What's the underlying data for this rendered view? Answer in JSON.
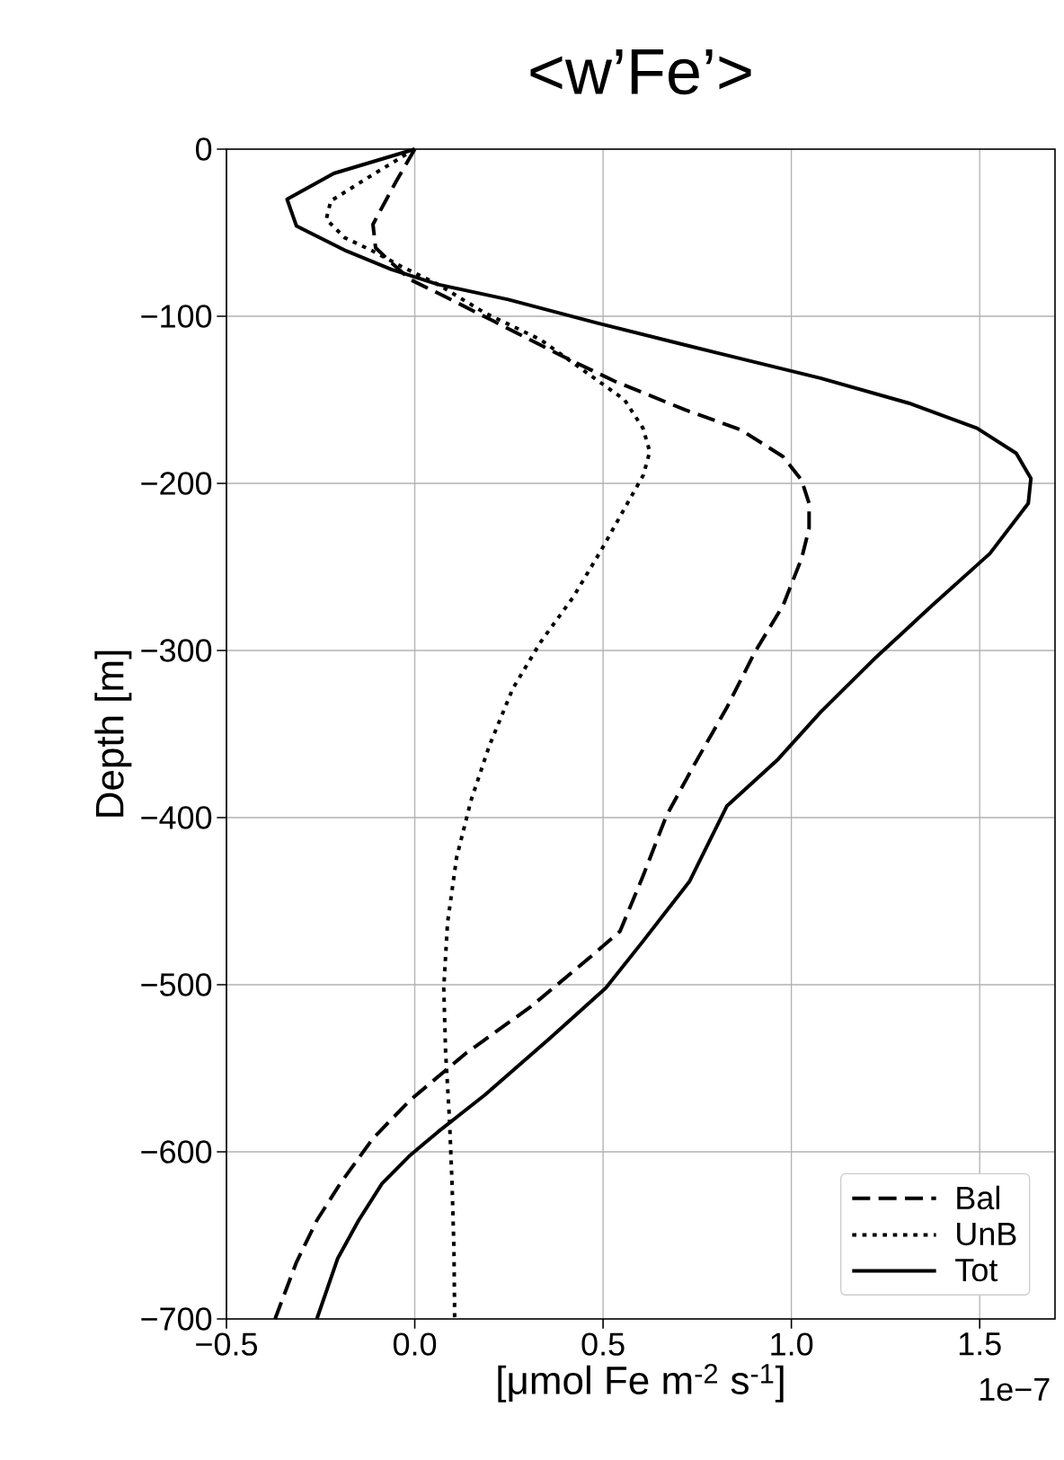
{
  "chart_data": {
    "type": "line",
    "title": "<w’Fe’>",
    "xlabel": "[μmol Fe m$^{-2}$ s$^{-1}$]",
    "ylabel": "Depth [m]",
    "xlim": [
      -0.5,
      1.7
    ],
    "ylim": [
      -700,
      0
    ],
    "xticks": [
      {
        "value": -0.5,
        "label": "−0.5"
      },
      {
        "value": 0,
        "label": "0.0"
      },
      {
        "value": 0.5,
        "label": "0.5"
      },
      {
        "value": 1,
        "label": "1.0"
      },
      {
        "value": 1.5,
        "label": "1.5"
      }
    ],
    "yticks": [
      {
        "value": 0,
        "label": "0"
      },
      {
        "value": -100,
        "label": "−100"
      },
      {
        "value": -200,
        "label": "−200"
      },
      {
        "value": -300,
        "label": "−300"
      },
      {
        "value": -400,
        "label": "−400"
      },
      {
        "value": -500,
        "label": "−500"
      },
      {
        "value": -600,
        "label": "−600"
      },
      {
        "value": -700,
        "label": "−700"
      }
    ],
    "grid": true,
    "legend": "bottom right",
    "annotations": [
      "1e−7"
    ],
    "series": [
      {
        "name": "Bal",
        "color": "#000000",
        "line_style": "dashed",
        "x": [
          0,
          -0.05,
          -0.111,
          -0.104,
          -0.062,
          -0.012,
          0.087,
          0.21,
          0.384,
          0.532,
          0.718,
          0.866,
          0.978,
          1.027,
          1.047,
          1.047,
          1.027,
          0.978,
          0.903,
          0.829,
          0.743,
          0.668,
          0.606,
          0.545,
          0.458,
          0.309,
          0.136,
          -0.012,
          -0.111,
          -0.198,
          -0.26,
          -0.314,
          -0.371
        ],
        "values": [
          0,
          -19.5,
          -45,
          -59,
          -68,
          -78,
          -89,
          -103,
          -123,
          -139,
          -156,
          -168,
          -184,
          -198,
          -212,
          -227,
          -245,
          -273,
          -301,
          -334,
          -368,
          -399,
          -435,
          -468,
          -485,
          -513,
          -541,
          -569,
          -592,
          -619,
          -641,
          -666,
          -700
        ]
      },
      {
        "name": "UnB",
        "color": "#000000",
        "line_style": "dotted",
        "x": [
          0,
          -0.124,
          -0.223,
          -0.235,
          -0.186,
          -0.111,
          -0.037,
          0.062,
          0.186,
          0.334,
          0.458,
          0.557,
          0.606,
          0.624,
          0.607,
          0.557,
          0.495,
          0.421,
          0.334,
          0.26,
          0.198,
          0.149,
          0.111,
          0.087,
          0.077,
          0.082,
          0.092,
          0.099,
          0.104,
          0.106
        ],
        "values": [
          0,
          -17,
          -31,
          -42,
          -53,
          -61,
          -70,
          -81,
          -98,
          -114,
          -134,
          -150,
          -167,
          -181,
          -195,
          -215,
          -240,
          -268,
          -295,
          -323,
          -357,
          -390,
          -424,
          -463,
          -502,
          -541,
          -580,
          -619,
          -658,
          -700
        ]
      },
      {
        "name": "Tot",
        "color": "#000000",
        "line_style": "solid",
        "x": [
          0,
          -0.215,
          -0.339,
          -0.314,
          -0.181,
          -0.062,
          0.062,
          0.248,
          0.483,
          0.804,
          1.077,
          1.312,
          1.493,
          1.597,
          1.636,
          1.629,
          1.527,
          1.374,
          1.225,
          1.077,
          0.965,
          0.829,
          0.73,
          0.606,
          0.507,
          0.359,
          0.186,
          0.062,
          -0.012,
          -0.087,
          -0.149,
          -0.205,
          -0.26
        ],
        "values": [
          0,
          -14.5,
          -30,
          -46,
          -61,
          -72,
          -81,
          -90,
          -104,
          -122,
          -137,
          -152,
          -167,
          -182,
          -197,
          -212,
          -242,
          -273,
          -304,
          -337,
          -365,
          -393,
          -438,
          -474,
          -502,
          -532,
          -566,
          -588,
          -602,
          -619,
          -641,
          -664,
          -700
        ]
      }
    ]
  }
}
